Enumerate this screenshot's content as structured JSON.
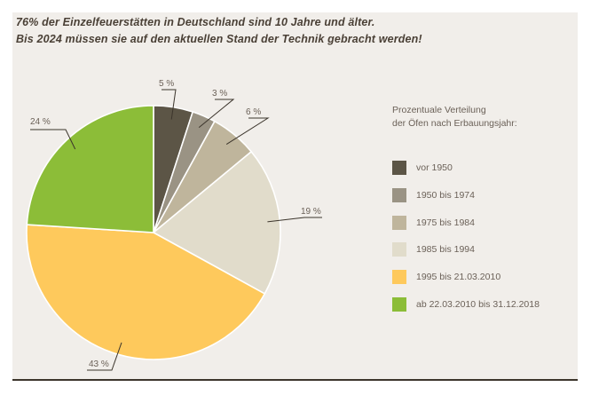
{
  "title": {
    "line1": "76% der Einzelfeuerstätten in Deutschland sind 10 Jahre und älter.",
    "line2": "Bis 2024 müssen sie auf den aktuellen Stand der Technik gebracht werden!"
  },
  "legend": {
    "title_line1": "Prozentuale Verteilung",
    "title_line2": "der Öfen nach Erbauungsjahr:"
  },
  "chart_data": {
    "type": "pie",
    "unit": "%",
    "categories": [
      "vor 1950",
      "1950 bis 1974",
      "1975 bis 1984",
      "1985 bis 1994",
      "1995 bis 21.03.2010",
      "ab 22.03.2010 bis 31.12.2018"
    ],
    "values": [
      5,
      3,
      6,
      19,
      43,
      24
    ],
    "labels": [
      "5 %",
      "3 %",
      "6 %",
      "19 %",
      "43 %",
      "24 %"
    ],
    "colors": [
      "#5c5546",
      "#9a9384",
      "#bfb59c",
      "#e1dccb",
      "#fec95c",
      "#8cbd38"
    ],
    "start": "12 o'clock",
    "direction": "clockwise",
    "legend_position": "right"
  }
}
